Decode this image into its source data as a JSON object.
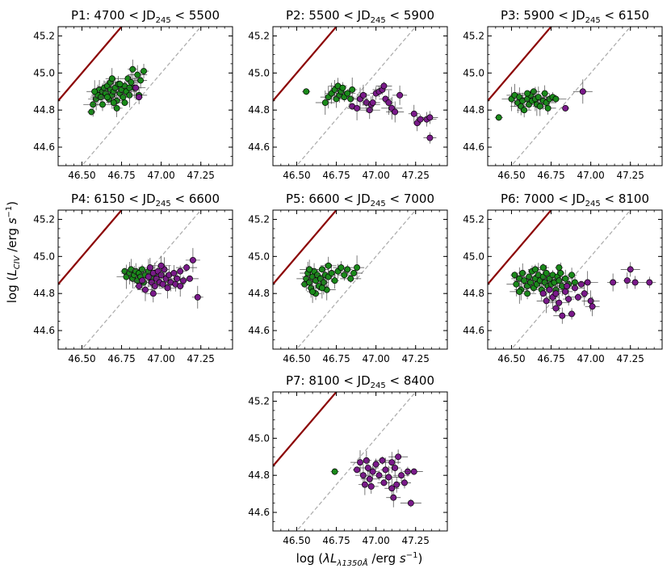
{
  "figure": {
    "ylabel": "log (L_CIV /erg s^-1)",
    "xlabel": "log (λL_λ1350Å /erg s^-1)",
    "colors": {
      "green": "#1a8a1a",
      "purple": "#7a1a8a",
      "red_line": "#8b0000",
      "dashed": "#aaaaaa"
    }
  },
  "chart_data": [
    {
      "type": "scatter",
      "id": "P1",
      "title": "P1: 4700 < JD245 < 5500",
      "title_main": "P1: 4700 < JD",
      "title_sub": "245",
      "title_end": " < 5500",
      "xlim": [
        46.35,
        47.45
      ],
      "ylim": [
        44.5,
        45.25
      ],
      "xticks": [
        "46.50",
        "46.75",
        "47.00",
        "47.25"
      ],
      "yticks": [
        "44.6",
        "44.8",
        "45.0",
        "45.2"
      ],
      "green": [
        [
          46.56,
          44.79
        ],
        [
          46.57,
          44.83
        ],
        [
          46.59,
          44.86
        ],
        [
          46.6,
          44.88
        ],
        [
          46.61,
          44.91
        ],
        [
          46.62,
          44.87
        ],
        [
          46.63,
          44.9
        ],
        [
          46.64,
          44.92
        ],
        [
          46.65,
          44.89
        ],
        [
          46.66,
          44.93
        ],
        [
          46.67,
          44.86
        ],
        [
          46.68,
          44.91
        ],
        [
          46.68,
          44.95
        ],
        [
          46.69,
          44.88
        ],
        [
          46.7,
          44.9
        ],
        [
          46.71,
          44.92
        ],
        [
          46.72,
          44.85
        ],
        [
          46.72,
          44.81
        ],
        [
          46.73,
          44.94
        ],
        [
          46.74,
          44.89
        ],
        [
          46.75,
          44.91
        ],
        [
          46.76,
          44.87
        ],
        [
          46.77,
          44.93
        ],
        [
          46.78,
          44.9
        ],
        [
          46.79,
          44.97
        ],
        [
          46.8,
          44.88
        ],
        [
          46.81,
          44.95
        ],
        [
          46.83,
          44.92
        ],
        [
          46.85,
          44.99
        ],
        [
          46.86,
          44.88
        ],
        [
          46.87,
          44.96
        ],
        [
          46.89,
          45.01
        ],
        [
          46.63,
          44.83
        ],
        [
          46.66,
          44.87
        ],
        [
          46.7,
          44.84
        ],
        [
          46.74,
          44.94
        ],
        [
          46.77,
          44.84
        ],
        [
          46.8,
          44.92
        ],
        [
          46.58,
          44.9
        ],
        [
          46.69,
          44.97
        ],
        [
          46.82,
          45.02
        ]
      ],
      "purple": [
        [
          46.86,
          44.87
        ],
        [
          46.84,
          44.92
        ]
      ]
    },
    {
      "type": "scatter",
      "id": "P2",
      "title": "P2: 5500 < JD245 < 5900",
      "title_main": "P2: 5500 < JD",
      "title_sub": "245",
      "title_end": " < 5900",
      "xlim": [
        46.35,
        47.45
      ],
      "ylim": [
        44.5,
        45.25
      ],
      "xticks": [
        "46.50",
        "46.75",
        "47.00",
        "47.25"
      ],
      "yticks": [
        "44.6",
        "44.8",
        "45.0",
        "45.2"
      ],
      "green": [
        [
          46.56,
          44.9
        ],
        [
          46.68,
          44.84
        ],
        [
          46.7,
          44.87
        ],
        [
          46.72,
          44.89
        ],
        [
          46.74,
          44.91
        ],
        [
          46.75,
          44.86
        ],
        [
          46.76,
          44.93
        ],
        [
          46.77,
          44.88
        ],
        [
          46.78,
          44.9
        ],
        [
          46.79,
          44.92
        ],
        [
          46.8,
          44.87
        ],
        [
          46.82,
          44.89
        ],
        [
          46.84,
          44.86
        ],
        [
          46.85,
          44.91
        ]
      ],
      "purple": [
        [
          46.85,
          44.82
        ],
        [
          46.88,
          44.81
        ],
        [
          46.9,
          44.86
        ],
        [
          46.92,
          44.88
        ],
        [
          46.94,
          44.84
        ],
        [
          46.96,
          44.8
        ],
        [
          46.97,
          44.83
        ],
        [
          46.98,
          44.84
        ],
        [
          47.0,
          44.89
        ],
        [
          47.02,
          44.9
        ],
        [
          47.04,
          44.91
        ],
        [
          47.05,
          44.93
        ],
        [
          47.06,
          44.86
        ],
        [
          47.08,
          44.84
        ],
        [
          47.1,
          44.81
        ],
        [
          47.12,
          44.79
        ],
        [
          47.15,
          44.88
        ],
        [
          47.24,
          44.78
        ],
        [
          47.26,
          44.73
        ],
        [
          47.32,
          44.75
        ],
        [
          47.34,
          44.76
        ],
        [
          47.34,
          44.65
        ],
        [
          47.28,
          44.75
        ]
      ]
    },
    {
      "type": "scatter",
      "id": "P3",
      "title": "P3: 5900 < JD245 < 6150",
      "title_main": "P3: 5900 < JD",
      "title_sub": "245",
      "title_end": " < 6150",
      "xlim": [
        46.35,
        47.45
      ],
      "ylim": [
        44.5,
        45.25
      ],
      "xticks": [
        "46.50",
        "46.75",
        "47.00",
        "47.25"
      ],
      "yticks": [
        "44.6",
        "44.8",
        "45.0",
        "45.2"
      ],
      "green": [
        [
          46.42,
          44.76
        ],
        [
          46.5,
          44.86
        ],
        [
          46.52,
          44.88
        ],
        [
          46.54,
          44.84
        ],
        [
          46.55,
          44.87
        ],
        [
          46.56,
          44.82
        ],
        [
          46.57,
          44.85
        ],
        [
          46.58,
          44.8
        ],
        [
          46.6,
          44.86
        ],
        [
          46.61,
          44.83
        ],
        [
          46.62,
          44.88
        ],
        [
          46.63,
          44.85
        ],
        [
          46.64,
          44.9
        ],
        [
          46.65,
          44.86
        ],
        [
          46.66,
          44.83
        ],
        [
          46.67,
          44.87
        ],
        [
          46.68,
          44.82
        ],
        [
          46.7,
          44.85
        ],
        [
          46.71,
          44.89
        ],
        [
          46.72,
          44.84
        ],
        [
          46.73,
          44.81
        ],
        [
          46.74,
          44.86
        ],
        [
          46.76,
          44.87
        ],
        [
          46.78,
          44.86
        ],
        [
          46.6,
          44.89
        ]
      ],
      "purple": [
        [
          46.84,
          44.81
        ],
        [
          46.95,
          44.9
        ]
      ]
    },
    {
      "type": "scatter",
      "id": "P4",
      "title": "P4: 6150 < JD245 < 6600",
      "title_main": "P4: 6150 < JD",
      "title_sub": "245",
      "title_end": " < 6600",
      "xlim": [
        46.35,
        47.45
      ],
      "ylim": [
        44.5,
        45.25
      ],
      "xticks": [
        "46.50",
        "46.75",
        "47.00",
        "47.25"
      ],
      "yticks": [
        "44.6",
        "44.8",
        "45.0",
        "45.2"
      ],
      "green": [
        [
          46.77,
          44.92
        ],
        [
          46.78,
          44.89
        ],
        [
          46.8,
          44.91
        ],
        [
          46.81,
          44.93
        ],
        [
          46.82,
          44.88
        ],
        [
          46.83,
          44.9
        ],
        [
          46.84,
          44.92
        ],
        [
          46.85,
          44.87
        ],
        [
          46.86,
          44.91
        ],
        [
          46.87,
          44.89
        ],
        [
          46.88,
          44.93
        ],
        [
          46.89,
          44.86
        ],
        [
          46.9,
          44.9
        ],
        [
          46.92,
          44.92
        ],
        [
          46.94,
          44.88
        ],
        [
          46.96,
          44.91
        ]
      ],
      "purple": [
        [
          46.86,
          44.84
        ],
        [
          46.88,
          44.87
        ],
        [
          46.9,
          44.82
        ],
        [
          46.92,
          44.89
        ],
        [
          46.93,
          44.94
        ],
        [
          46.94,
          44.86
        ],
        [
          46.95,
          44.91
        ],
        [
          46.96,
          44.84
        ],
        [
          46.97,
          44.88
        ],
        [
          46.98,
          44.92
        ],
        [
          46.99,
          44.86
        ],
        [
          47.0,
          44.9
        ],
        [
          47.01,
          44.85
        ],
        [
          47.02,
          44.93
        ],
        [
          47.03,
          44.88
        ],
        [
          47.04,
          44.83
        ],
        [
          47.05,
          44.9
        ],
        [
          47.06,
          44.86
        ],
        [
          47.08,
          44.91
        ],
        [
          47.09,
          44.85
        ],
        [
          47.1,
          44.88
        ],
        [
          47.12,
          44.92
        ],
        [
          47.14,
          44.87
        ],
        [
          47.16,
          44.94
        ],
        [
          47.18,
          44.88
        ],
        [
          47.2,
          44.98
        ],
        [
          47.23,
          44.78
        ],
        [
          47.12,
          44.84
        ],
        [
          47.0,
          44.95
        ],
        [
          46.95,
          44.8
        ]
      ]
    },
    {
      "type": "scatter",
      "id": "P5",
      "title": "P5: 6600 < JD245 < 7000",
      "title_main": "P5: 6600 < JD",
      "title_sub": "245",
      "title_end": " < 7000",
      "xlim": [
        46.35,
        47.45
      ],
      "ylim": [
        44.5,
        45.25
      ],
      "xticks": [
        "46.50",
        "46.75",
        "47.00",
        "47.25"
      ],
      "yticks": [
        "44.6",
        "44.8",
        "45.0",
        "45.2"
      ],
      "green": [
        [
          46.55,
          44.85
        ],
        [
          46.56,
          44.88
        ],
        [
          46.57,
          44.91
        ],
        [
          46.58,
          44.86
        ],
        [
          46.59,
          44.83
        ],
        [
          46.6,
          44.89
        ],
        [
          46.61,
          44.92
        ],
        [
          46.62,
          44.87
        ],
        [
          46.62,
          44.8
        ],
        [
          46.63,
          44.9
        ],
        [
          46.64,
          44.84
        ],
        [
          46.65,
          44.88
        ],
        [
          46.66,
          44.93
        ],
        [
          46.67,
          44.86
        ],
        [
          46.68,
          44.9
        ],
        [
          46.69,
          44.82
        ],
        [
          46.7,
          44.89
        ],
        [
          46.72,
          44.91
        ],
        [
          46.74,
          44.87
        ],
        [
          46.76,
          44.92
        ],
        [
          46.78,
          44.94
        ],
        [
          46.8,
          44.9
        ],
        [
          46.82,
          44.93
        ],
        [
          46.84,
          44.88
        ],
        [
          46.86,
          44.91
        ],
        [
          46.88,
          44.94
        ],
        [
          46.6,
          44.81
        ],
        [
          46.66,
          44.83
        ],
        [
          46.58,
          44.93
        ],
        [
          46.7,
          44.95
        ]
      ],
      "purple": []
    },
    {
      "type": "scatter",
      "id": "P6",
      "title": "P6: 7000 < JD245 < 8100",
      "title_main": "P6: 7000 < JD",
      "title_sub": "245",
      "title_end": " < 8100",
      "xlim": [
        46.35,
        47.45
      ],
      "ylim": [
        44.5,
        45.25
      ],
      "xticks": [
        "46.50",
        "46.75",
        "47.00",
        "47.25"
      ],
      "yticks": [
        "44.6",
        "44.8",
        "45.0",
        "45.2"
      ],
      "green": [
        [
          46.52,
          44.9
        ],
        [
          46.53,
          44.85
        ],
        [
          46.55,
          44.88
        ],
        [
          46.56,
          44.82
        ],
        [
          46.57,
          44.91
        ],
        [
          46.58,
          44.87
        ],
        [
          46.6,
          44.84
        ],
        [
          46.61,
          44.89
        ],
        [
          46.62,
          44.86
        ],
        [
          46.63,
          44.92
        ],
        [
          46.64,
          44.83
        ],
        [
          46.65,
          44.88
        ],
        [
          46.66,
          44.85
        ],
        [
          46.67,
          44.9
        ],
        [
          46.68,
          44.87
        ],
        [
          46.69,
          44.82
        ],
        [
          46.7,
          44.89
        ],
        [
          46.71,
          44.86
        ],
        [
          46.72,
          44.91
        ],
        [
          46.73,
          44.84
        ],
        [
          46.74,
          44.88
        ],
        [
          46.75,
          44.85
        ],
        [
          46.76,
          44.9
        ],
        [
          46.77,
          44.86
        ],
        [
          46.78,
          44.82
        ],
        [
          46.79,
          44.89
        ],
        [
          46.8,
          44.87
        ],
        [
          46.81,
          44.91
        ],
        [
          46.82,
          44.84
        ],
        [
          46.84,
          44.88
        ],
        [
          46.86,
          44.85
        ],
        [
          46.88,
          44.9
        ],
        [
          46.9,
          44.86
        ],
        [
          46.6,
          44.8
        ],
        [
          46.65,
          44.93
        ],
        [
          46.7,
          44.94
        ],
        [
          46.8,
          44.94
        ],
        [
          46.55,
          44.81
        ]
      ],
      "purple": [
        [
          46.7,
          44.8
        ],
        [
          46.72,
          44.76
        ],
        [
          46.74,
          44.82
        ],
        [
          46.76,
          44.78
        ],
        [
          46.78,
          44.8
        ],
        [
          46.8,
          44.75
        ],
        [
          46.82,
          44.68
        ],
        [
          46.84,
          44.81
        ],
        [
          46.86,
          44.77
        ],
        [
          46.88,
          44.69
        ],
        [
          46.9,
          44.83
        ],
        [
          46.92,
          44.78
        ],
        [
          46.94,
          44.85
        ],
        [
          46.96,
          44.8
        ],
        [
          46.98,
          44.86
        ],
        [
          47.0,
          44.76
        ],
        [
          47.01,
          44.73
        ],
        [
          47.14,
          44.86
        ],
        [
          47.23,
          44.87
        ],
        [
          47.25,
          44.93
        ],
        [
          47.28,
          44.86
        ],
        [
          47.37,
          44.86
        ],
        [
          46.78,
          44.72
        ],
        [
          46.85,
          44.84
        ]
      ]
    },
    {
      "type": "scatter",
      "id": "P7",
      "title": "P7: 8100 < JD245 < 8400",
      "title_main": "P7: 8100 < JD",
      "title_sub": "245",
      "title_end": " < 8400",
      "xlim": [
        46.35,
        47.45
      ],
      "ylim": [
        44.5,
        45.25
      ],
      "xticks": [
        "46.50",
        "46.75",
        "47.00",
        "47.25"
      ],
      "yticks": [
        "44.6",
        "44.8",
        "45.0",
        "45.2"
      ],
      "green": [
        [
          46.74,
          44.82
        ]
      ],
      "purple": [
        [
          46.88,
          44.83
        ],
        [
          46.9,
          44.87
        ],
        [
          46.92,
          44.8
        ],
        [
          46.93,
          44.75
        ],
        [
          46.94,
          44.88
        ],
        [
          46.95,
          44.84
        ],
        [
          46.96,
          44.78
        ],
        [
          46.97,
          44.74
        ],
        [
          46.98,
          44.82
        ],
        [
          47.0,
          44.86
        ],
        [
          47.02,
          44.8
        ],
        [
          47.04,
          44.88
        ],
        [
          47.05,
          44.76
        ],
        [
          47.06,
          44.83
        ],
        [
          47.08,
          44.79
        ],
        [
          47.1,
          44.87
        ],
        [
          47.11,
          44.68
        ],
        [
          47.12,
          44.84
        ],
        [
          47.13,
          44.75
        ],
        [
          47.14,
          44.9
        ],
        [
          47.16,
          44.8
        ],
        [
          47.18,
          44.76
        ],
        [
          47.2,
          44.82
        ],
        [
          47.22,
          44.65
        ],
        [
          47.24,
          44.82
        ],
        [
          47.1,
          44.73
        ]
      ]
    }
  ]
}
